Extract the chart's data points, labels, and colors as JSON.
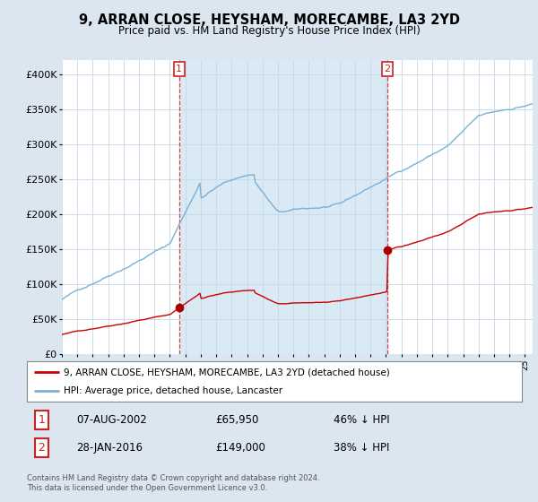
{
  "title": "9, ARRAN CLOSE, HEYSHAM, MORECAMBE, LA3 2YD",
  "subtitle": "Price paid vs. HM Land Registry's House Price Index (HPI)",
  "legend_line1": "9, ARRAN CLOSE, HEYSHAM, MORECAMBE, LA3 2YD (detached house)",
  "legend_line2": "HPI: Average price, detached house, Lancaster",
  "annotation1_date": "07-AUG-2002",
  "annotation1_price": "£65,950",
  "annotation1_hpi": "46% ↓ HPI",
  "annotation2_date": "28-JAN-2016",
  "annotation2_price": "£149,000",
  "annotation2_hpi": "38% ↓ HPI",
  "footer": "Contains HM Land Registry data © Crown copyright and database right 2024.\nThis data is licensed under the Open Government Licence v3.0.",
  "ylim": [
    0,
    420000
  ],
  "yticks": [
    0,
    50000,
    100000,
    150000,
    200000,
    250000,
    300000,
    350000,
    400000
  ],
  "ytick_labels": [
    "£0",
    "£50K",
    "£100K",
    "£150K",
    "£200K",
    "£250K",
    "£300K",
    "£350K",
    "£400K"
  ],
  "property_color": "#cc0000",
  "hpi_color": "#7bafd4",
  "shade_color": "#daeaf5",
  "background_color": "#dce6f0",
  "plot_bg_color": "#ffffff",
  "grid_color": "#c8d8e8",
  "sale1_x": 2002.6,
  "sale1_y": 65950,
  "sale2_x": 2016.08,
  "sale2_y": 149000,
  "marker_color": "#aa0000",
  "annotation_box_color": "#cc2222",
  "xmin": 1995.0,
  "xmax": 2025.5
}
